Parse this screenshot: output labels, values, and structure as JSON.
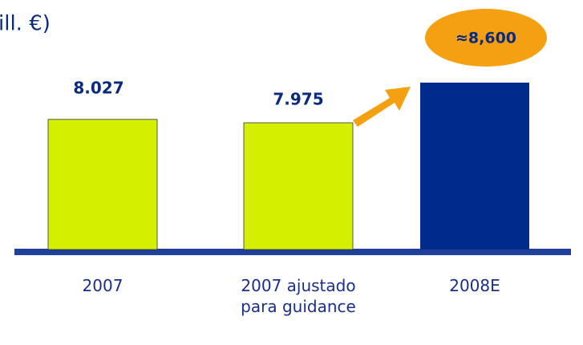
{
  "chart_data": {
    "type": "bar",
    "title": "ill. €)",
    "categories": [
      "2007",
      "2007 ajustado para guidance",
      "2008E"
    ],
    "values": [
      8027,
      7975,
      8600
    ],
    "value_labels": [
      "8.027",
      "7.975",
      "≈8,600"
    ],
    "colors": [
      "#d4f000",
      "#d4f000",
      "#002a8c"
    ],
    "ylim": [
      6000,
      8800
    ]
  }
}
